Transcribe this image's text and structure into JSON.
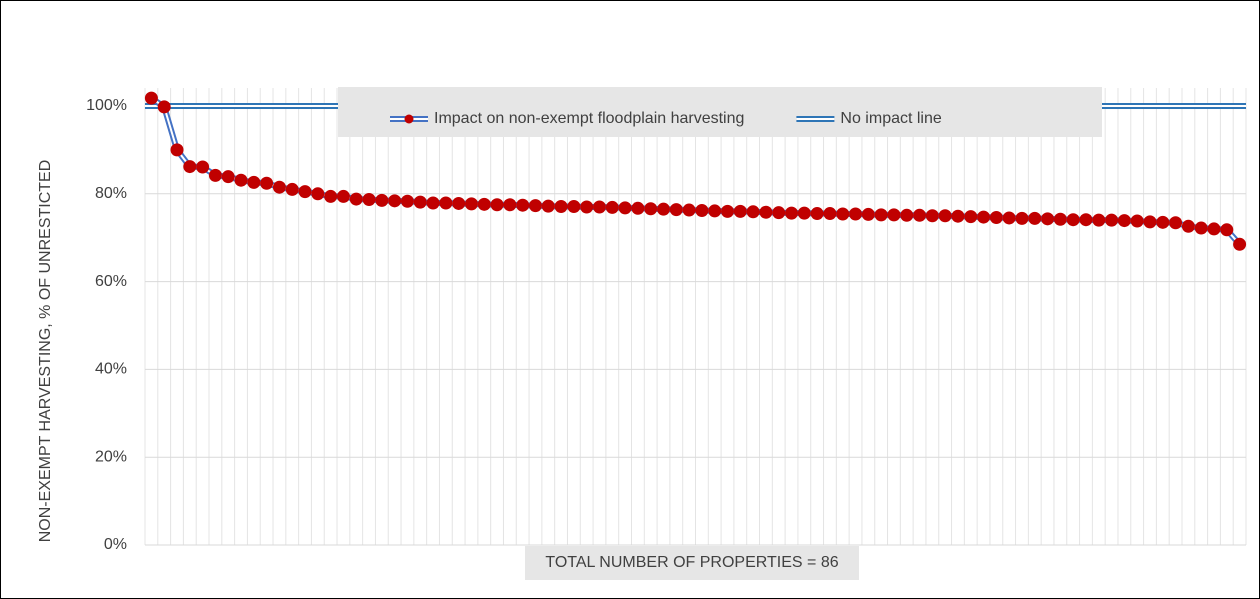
{
  "chart_data": {
    "type": "line",
    "y_label": "NON-EXEMPT HARVESTING, % OF UNRESTICTED",
    "x_label": "TOTAL NUMBER OF PROPERTIES = 86",
    "ylim": [
      0,
      100
    ],
    "yticks": [
      {
        "value": 0,
        "label": "0%"
      },
      {
        "value": 20,
        "label": "20%"
      },
      {
        "value": 40,
        "label": "40%"
      },
      {
        "value": 60,
        "label": "60%"
      },
      {
        "value": 80,
        "label": "80%"
      },
      {
        "value": 100,
        "label": "100%"
      }
    ],
    "grid": true,
    "legend": "top",
    "series": [
      {
        "name": "Impact on non-exempt floodplain harvesting",
        "color": "#c00000",
        "line_color": "#4472c4",
        "marker": true,
        "values": [
          101.8,
          99.8,
          90,
          86.2,
          86.1,
          84.2,
          83.9,
          83.1,
          82.6,
          82.4,
          81.5,
          81,
          80.5,
          80,
          79.4,
          79.4,
          78.8,
          78.7,
          78.5,
          78.4,
          78.3,
          78.1,
          77.9,
          77.9,
          77.8,
          77.7,
          77.6,
          77.5,
          77.5,
          77.4,
          77.3,
          77.2,
          77.1,
          77.1,
          77,
          77,
          76.9,
          76.8,
          76.7,
          76.6,
          76.5,
          76.4,
          76.3,
          76.2,
          76.1,
          76,
          76,
          75.9,
          75.8,
          75.7,
          75.6,
          75.6,
          75.5,
          75.5,
          75.4,
          75.4,
          75.3,
          75.2,
          75.2,
          75.1,
          75.1,
          75,
          75,
          74.9,
          74.8,
          74.7,
          74.6,
          74.5,
          74.4,
          74.4,
          74.3,
          74.2,
          74.1,
          74.1,
          74,
          74,
          73.9,
          73.8,
          73.6,
          73.5,
          73.4,
          72.6,
          72.2,
          72,
          71.8,
          68.5
        ]
      },
      {
        "name": "No impact line",
        "color": "#2e75b6",
        "line_color": "#2e75b6",
        "marker": false,
        "values": [
          100,
          100,
          100,
          100,
          100,
          100,
          100,
          100,
          100,
          100,
          100,
          100,
          100,
          100,
          100,
          100,
          100,
          100,
          100,
          100,
          100,
          100,
          100,
          100,
          100,
          100,
          100,
          100,
          100,
          100,
          100,
          100,
          100,
          100,
          100,
          100,
          100,
          100,
          100,
          100,
          100,
          100,
          100,
          100,
          100,
          100,
          100,
          100,
          100,
          100,
          100,
          100,
          100,
          100,
          100,
          100,
          100,
          100,
          100,
          100,
          100,
          100,
          100,
          100,
          100,
          100,
          100,
          100,
          100,
          100,
          100,
          100,
          100,
          100,
          100,
          100,
          100,
          100,
          100,
          100,
          100,
          100,
          100,
          100,
          100,
          100
        ]
      }
    ]
  }
}
